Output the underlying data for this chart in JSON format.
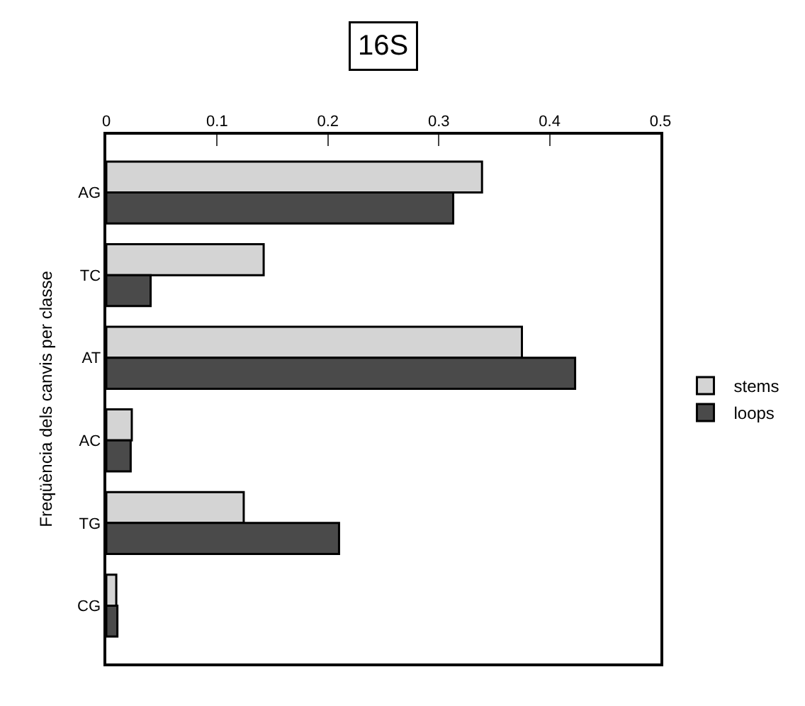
{
  "chart_data": {
    "type": "bar",
    "orientation": "horizontal",
    "title": "16S",
    "ylabel": "Freqüència dels canvis per classe",
    "categories": [
      "AG",
      "TC",
      "AT",
      "AC",
      "TG",
      "CG"
    ],
    "series": [
      {
        "name": "stems",
        "color": "#d4d4d4",
        "values": [
          0.339,
          0.142,
          0.375,
          0.023,
          0.124,
          0.009
        ]
      },
      {
        "name": "loops",
        "color": "#4a4a4a",
        "values": [
          0.313,
          0.04,
          0.423,
          0.022,
          0.21,
          0.01
        ]
      }
    ],
    "xlim": [
      0,
      0.5
    ],
    "xticks": [
      0,
      0.1,
      0.2,
      0.3,
      0.4,
      0.5
    ],
    "legend": "right"
  }
}
